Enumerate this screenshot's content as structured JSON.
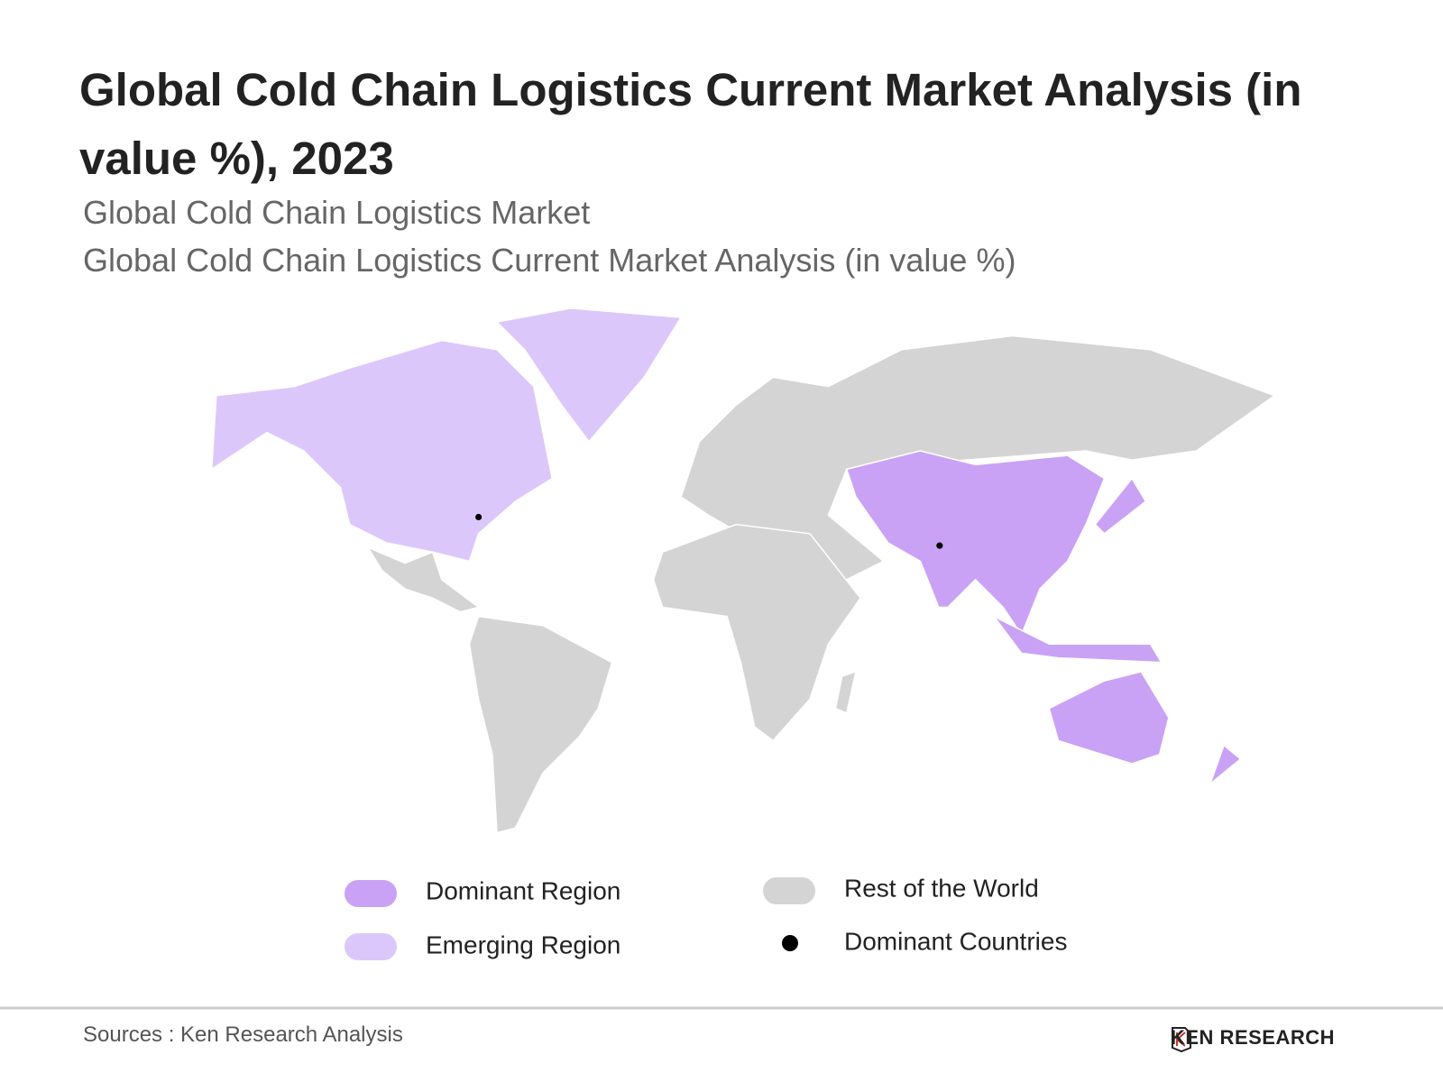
{
  "header": {
    "title": "Global Cold Chain Logistics Current Market Analysis (in value %), 2023",
    "subtitles": [
      "Global Cold Chain Logistics Market",
      "Global Cold Chain Logistics Current Market Analysis (in value %)"
    ]
  },
  "legend": [
    {
      "label": "Dominant Region",
      "color": "#c9a2f6"
    },
    {
      "label": "Emerging Region",
      "color": "#dcc7fb"
    },
    {
      "label": "Rest of the World",
      "color": "#d4d4d4"
    },
    {
      "label": "Dominant Countries",
      "color": "#000000"
    }
  ],
  "footer": {
    "source": "Sources : Ken Research Analysis",
    "logo": "KEN RESEARCH"
  }
}
